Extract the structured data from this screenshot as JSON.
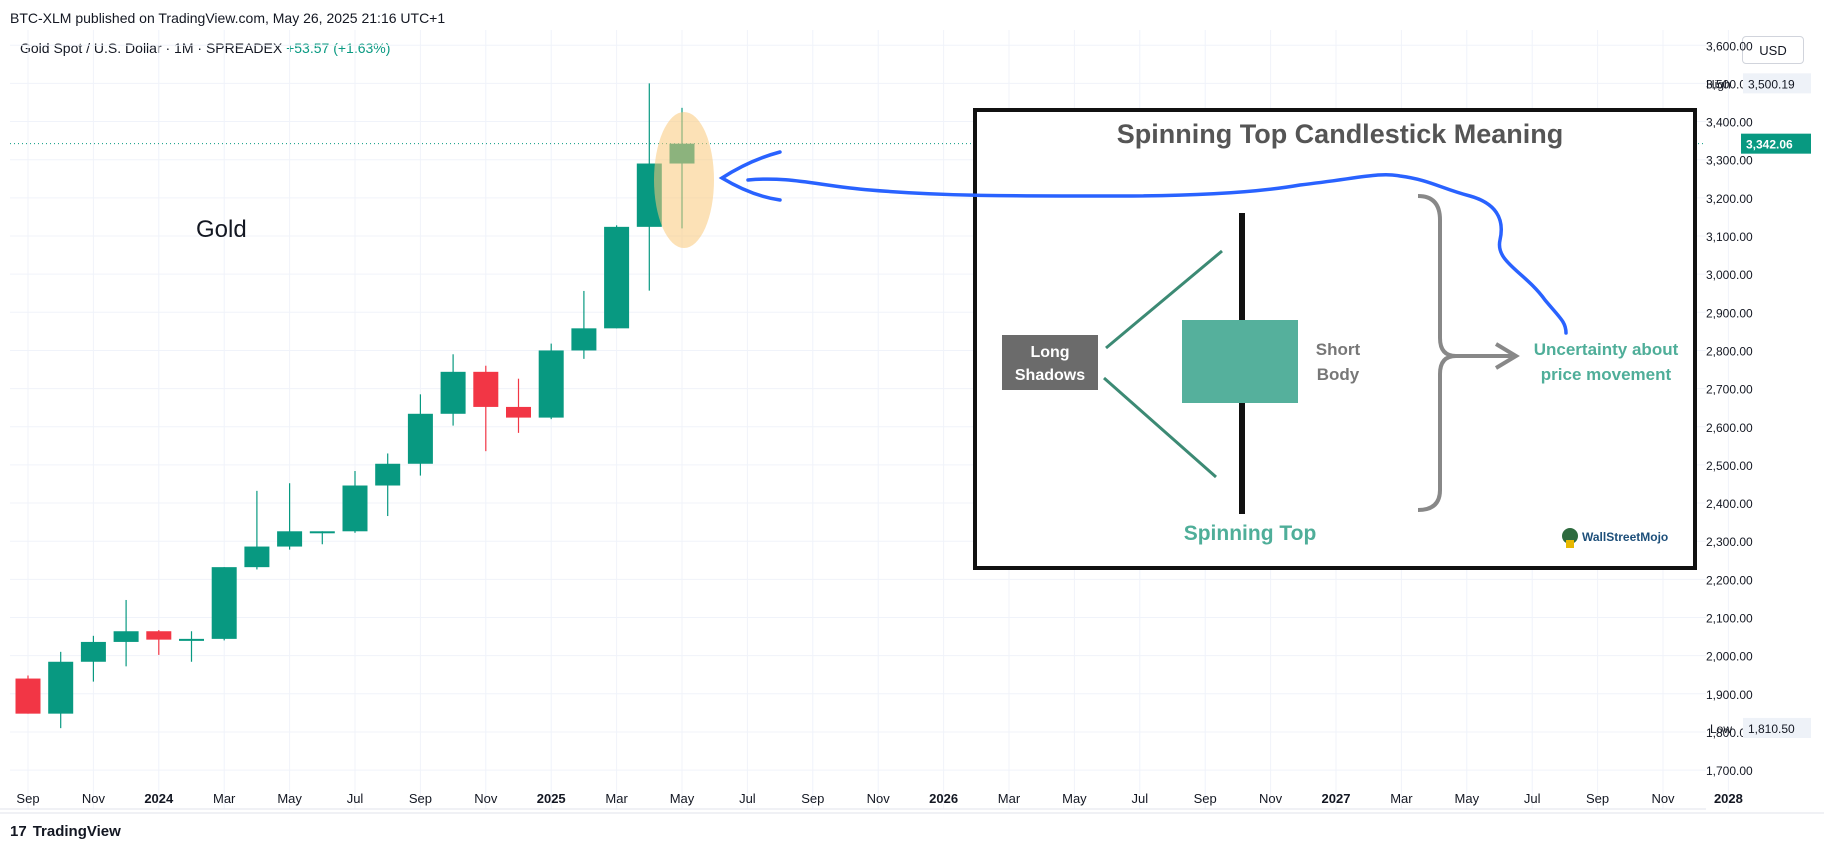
{
  "publisher_line": "BTC-XLM published on TradingView.com, May 26, 2025 21:16 UTC+1",
  "symbol_line": "Gold Spot / U.S. Dollar · 1M · SPREADEX",
  "change_line": "+53.57 (+1.63%)",
  "currency_button": "USD",
  "chart_label": "Gold",
  "brand": {
    "logo_text": "17",
    "name": "TradingView"
  },
  "price_badges": {
    "high": {
      "label": "High",
      "value": "3,500.19",
      "price": 3500.19
    },
    "current": {
      "value": "3,342.06",
      "price": 3342.06
    },
    "low": {
      "label": "Low",
      "value": "1,810.50",
      "price": 1810.5
    }
  },
  "infobox": {
    "title": "Spinning Top Candlestick Meaning",
    "long_shadows_line1": "Long",
    "long_shadows_line2": "Shadows",
    "short_body_line1": "Short",
    "short_body_line2": "Body",
    "uncertainty_line1": "Uncertainty about",
    "uncertainty_line2": "price movement",
    "spinning_top": "Spinning Top",
    "logo": "WallStreetMojo"
  },
  "colors": {
    "up": "#089981",
    "down": "#f23645",
    "annotation": "#2962ff",
    "highlight": "#f9c97a",
    "box_green": "#55b09c"
  },
  "chart_data": {
    "type": "candlestick",
    "ylim": [
      1640,
      3640
    ],
    "y_ticks": [
      "1,700.00",
      "1,800.00",
      "1,900.00",
      "2,000.00",
      "2,100.00",
      "2,200.00",
      "2,300.00",
      "2,400.00",
      "2,500.00",
      "2,600.00",
      "2,700.00",
      "2,800.00",
      "2,900.00",
      "3,000.00",
      "3,100.00",
      "3,200.00",
      "3,300.00",
      "3,400.00",
      "3,500.00",
      "3,600.00"
    ],
    "x_ticks": [
      "Sep",
      "Nov",
      "2024",
      "Mar",
      "May",
      "Jul",
      "Sep",
      "Nov",
      "2025",
      "Mar",
      "May",
      "Jul",
      "Sep",
      "Nov",
      "2026",
      "Mar",
      "May",
      "Jul",
      "Sep",
      "Nov",
      "2027",
      "Mar",
      "May",
      "Jul",
      "Sep",
      "Nov",
      "2028"
    ],
    "candles": [
      {
        "o": 1940,
        "h": 1948,
        "l": 1848,
        "c": 1848
      },
      {
        "o": 1848,
        "h": 2010,
        "l": 1810,
        "c": 1984
      },
      {
        "o": 1984,
        "h": 2052,
        "l": 1932,
        "c": 2036
      },
      {
        "o": 2036,
        "h": 2146,
        "l": 1972,
        "c": 2064
      },
      {
        "o": 2064,
        "h": 2067,
        "l": 2002,
        "c": 2042
      },
      {
        "o": 2042,
        "h": 2064,
        "l": 1984,
        "c": 2044
      },
      {
        "o": 2044,
        "h": 2232,
        "l": 2040,
        "c": 2232
      },
      {
        "o": 2232,
        "h": 2432,
        "l": 2226,
        "c": 2286
      },
      {
        "o": 2286,
        "h": 2452,
        "l": 2278,
        "c": 2326
      },
      {
        "o": 2326,
        "h": 2326,
        "l": 2292,
        "c": 2326
      },
      {
        "o": 2326,
        "h": 2484,
        "l": 2322,
        "c": 2446
      },
      {
        "o": 2446,
        "h": 2530,
        "l": 2366,
        "c": 2503
      },
      {
        "o": 2503,
        "h": 2685,
        "l": 2472,
        "c": 2634
      },
      {
        "o": 2634,
        "h": 2790,
        "l": 2603,
        "c": 2744
      },
      {
        "o": 2744,
        "h": 2760,
        "l": 2536,
        "c": 2652
      },
      {
        "o": 2652,
        "h": 2726,
        "l": 2584,
        "c": 2624
      },
      {
        "o": 2624,
        "h": 2818,
        "l": 2620,
        "c": 2800
      },
      {
        "o": 2800,
        "h": 2956,
        "l": 2778,
        "c": 2858
      },
      {
        "o": 2858,
        "h": 3128,
        "l": 2858,
        "c": 3124
      },
      {
        "o": 3124,
        "h": 3500,
        "l": 2957,
        "c": 3290
      },
      {
        "o": 3290,
        "h": 3436,
        "l": 3120,
        "c": 3342
      }
    ]
  }
}
